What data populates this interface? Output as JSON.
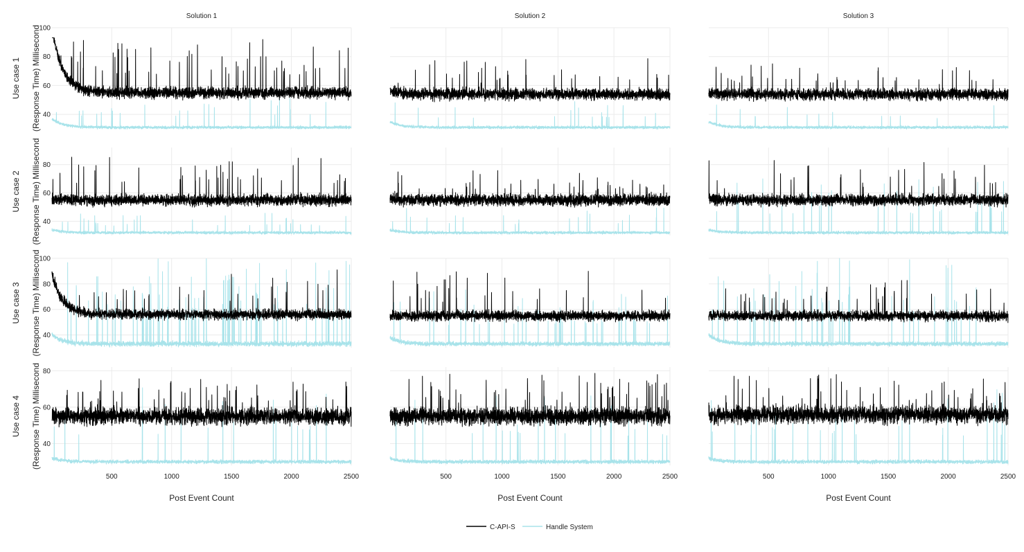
{
  "chart_data": {
    "type": "line",
    "column_titles": [
      "Solution 1",
      "Solution 2",
      "Solution 3"
    ],
    "row_labels": [
      "Use case 1",
      "Use case 2",
      "Use case 3",
      "Use case 4"
    ],
    "ylabel": "(Response Time) Millisecond",
    "xlabel": "Post Event Count",
    "xlim": [
      1,
      2500
    ],
    "x_ticks": [
      500,
      1000,
      1500,
      2000,
      2500
    ],
    "series_names": [
      "C-API-S",
      "Handle System"
    ],
    "colors": {
      "C-API-S": "#000000",
      "Handle System": "#a8e3ea"
    },
    "grid": true,
    "legend_position": "bottom-center",
    "rows": [
      {
        "label": "Use case 1",
        "ylim": [
          30,
          100
        ],
        "y_ticks": [
          40,
          60,
          80,
          100
        ],
        "panels": [
          {
            "solution": "Solution 1",
            "c_api_s": {
              "start": 100,
              "base": 55,
              "noise": 6,
              "spike_max": 93,
              "spike_rate": 0.018
            },
            "handle_system": {
              "start": 37,
              "base": 31,
              "noise": 1.5,
              "spike_max": 52,
              "spike_rate": 0.012
            }
          },
          {
            "solution": "Solution 2",
            "c_api_s": {
              "start": 57,
              "base": 54,
              "noise": 6,
              "spike_max": 79,
              "spike_rate": 0.015
            },
            "handle_system": {
              "start": 35,
              "base": 31,
              "noise": 1.5,
              "spike_max": 50,
              "spike_rate": 0.01
            }
          },
          {
            "solution": "Solution 3",
            "c_api_s": {
              "start": 55,
              "base": 54,
              "noise": 6,
              "spike_max": 76,
              "spike_rate": 0.015
            },
            "handle_system": {
              "start": 35,
              "base": 31,
              "noise": 1.5,
              "spike_max": 49,
              "spike_rate": 0.01
            }
          }
        ]
      },
      {
        "label": "Use case 2",
        "ylim": [
          30,
          92
        ],
        "y_ticks": [
          40,
          60,
          80
        ],
        "panels": [
          {
            "solution": "Solution 1",
            "c_api_s": {
              "start": 56,
              "base": 55,
              "noise": 6,
              "spike_max": 88,
              "spike_rate": 0.015
            },
            "handle_system": {
              "start": 34,
              "base": 32,
              "noise": 1.5,
              "spike_max": 46,
              "spike_rate": 0.012
            }
          },
          {
            "solution": "Solution 2",
            "c_api_s": {
              "start": 56,
              "base": 55,
              "noise": 6,
              "spike_max": 76,
              "spike_rate": 0.015
            },
            "handle_system": {
              "start": 34,
              "base": 32,
              "noise": 1.5,
              "spike_max": 50,
              "spike_rate": 0.01
            }
          },
          {
            "solution": "Solution 3",
            "c_api_s": {
              "start": 56,
              "base": 55,
              "noise": 6,
              "spike_max": 83,
              "spike_rate": 0.015
            },
            "handle_system": {
              "start": 34,
              "base": 32,
              "noise": 1.5,
              "spike_max": 70,
              "spike_rate": 0.01
            }
          }
        ]
      },
      {
        "label": "Use case 3",
        "ylim": [
          30,
          100
        ],
        "y_ticks": [
          40,
          60,
          80,
          100
        ],
        "panels": [
          {
            "solution": "Solution 1",
            "c_api_s": {
              "start": 88,
              "base": 56,
              "noise": 6,
              "spike_max": 92,
              "spike_rate": 0.014
            },
            "handle_system": {
              "start": 40,
              "base": 33,
              "noise": 3,
              "spike_max": 100,
              "spike_rate": 0.03
            }
          },
          {
            "solution": "Solution 2",
            "c_api_s": {
              "start": 55,
              "base": 55,
              "noise": 6,
              "spike_max": 91,
              "spike_rate": 0.015
            },
            "handle_system": {
              "start": 38,
              "base": 33,
              "noise": 2.5,
              "spike_max": 77,
              "spike_rate": 0.02
            }
          },
          {
            "solution": "Solution 3",
            "c_api_s": {
              "start": 55,
              "base": 55,
              "noise": 6,
              "spike_max": 83,
              "spike_rate": 0.015
            },
            "handle_system": {
              "start": 40,
              "base": 33,
              "noise": 2.5,
              "spike_max": 100,
              "spike_rate": 0.02
            }
          }
        ]
      },
      {
        "label": "Use case 4",
        "ylim": [
          28,
          82
        ],
        "y_ticks": [
          40,
          60,
          80
        ],
        "panels": [
          {
            "solution": "Solution 1",
            "c_api_s": {
              "start": 55,
              "base": 55,
              "noise": 7,
              "spike_max": 76,
              "spike_rate": 0.02
            },
            "handle_system": {
              "start": 32,
              "base": 30,
              "noise": 1.5,
              "spike_max": 71,
              "spike_rate": 0.015
            }
          },
          {
            "solution": "Solution 2",
            "c_api_s": {
              "start": 55,
              "base": 55,
              "noise": 7,
              "spike_max": 79,
              "spike_rate": 0.02
            },
            "handle_system": {
              "start": 32,
              "base": 30,
              "noise": 1.5,
              "spike_max": 70,
              "spike_rate": 0.012
            }
          },
          {
            "solution": "Solution 3",
            "c_api_s": {
              "start": 55,
              "base": 56,
              "noise": 7,
              "spike_max": 78,
              "spike_rate": 0.02
            },
            "handle_system": {
              "start": 32,
              "base": 30,
              "noise": 1.5,
              "spike_max": 70,
              "spike_rate": 0.012
            }
          }
        ]
      }
    ]
  },
  "legend": {
    "items": [
      {
        "label": "C-API-S",
        "color": "#000000"
      },
      {
        "label": "Handle System",
        "color": "#a8e3ea"
      }
    ]
  }
}
